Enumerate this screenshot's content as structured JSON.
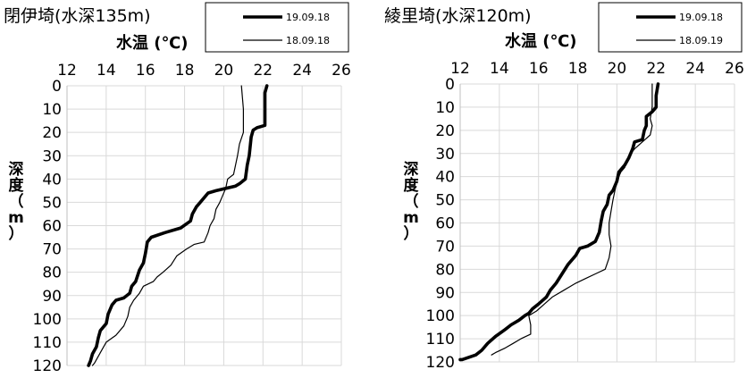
{
  "chart_data": [
    {
      "type": "line",
      "title": "閉伊埼(水深135m)",
      "xlabel": "水温 (℃)",
      "ylabel_chars": [
        "深",
        "度",
        "（",
        "m",
        "）"
      ],
      "xlim": [
        12,
        26
      ],
      "ylim": [
        0,
        120
      ],
      "y_inverted": true,
      "xticks": [
        "12",
        "14",
        "16",
        "18",
        "20",
        "22",
        "24",
        "26"
      ],
      "yticks": [
        "0",
        "10",
        "20",
        "30",
        "40",
        "50",
        "60",
        "70",
        "80",
        "90",
        "100",
        "110",
        "120"
      ],
      "grid": true,
      "legend_position": "top-right",
      "series": [
        {
          "name": "19.09.18",
          "style": "thick",
          "points": [
            [
              22.2,
              0
            ],
            [
              22.1,
              3
            ],
            [
              22.1,
              10
            ],
            [
              22.1,
              17
            ],
            [
              21.7,
              18
            ],
            [
              21.5,
              19
            ],
            [
              21.4,
              22
            ],
            [
              21.3,
              30
            ],
            [
              21.2,
              34
            ],
            [
              21.1,
              40
            ],
            [
              20.8,
              42
            ],
            [
              20.6,
              43
            ],
            [
              19.6,
              45
            ],
            [
              19.2,
              46
            ],
            [
              19.0,
              48
            ],
            [
              18.8,
              50
            ],
            [
              18.6,
              52
            ],
            [
              18.4,
              55
            ],
            [
              18.3,
              58
            ],
            [
              17.8,
              61
            ],
            [
              17.0,
              63
            ],
            [
              16.3,
              65
            ],
            [
              16.1,
              67
            ],
            [
              16.0,
              72
            ],
            [
              15.9,
              76
            ],
            [
              15.7,
              79
            ],
            [
              15.5,
              84
            ],
            [
              15.3,
              86
            ],
            [
              15.2,
              89
            ],
            [
              14.9,
              91
            ],
            [
              14.5,
              92
            ],
            [
              14.3,
              94
            ],
            [
              14.1,
              98
            ],
            [
              14.0,
              102
            ],
            [
              13.7,
              105
            ],
            [
              13.6,
              108
            ],
            [
              13.5,
              112
            ],
            [
              13.3,
              115
            ],
            [
              13.2,
              118
            ],
            [
              13.1,
              120
            ]
          ]
        },
        {
          "name": "18.09.18",
          "style": "thin",
          "points": [
            [
              20.9,
              0
            ],
            [
              21.0,
              10
            ],
            [
              21.0,
              20
            ],
            [
              20.8,
              25
            ],
            [
              20.7,
              30
            ],
            [
              20.6,
              34
            ],
            [
              20.5,
              38
            ],
            [
              20.2,
              40
            ],
            [
              20.1,
              44
            ],
            [
              19.9,
              48
            ],
            [
              19.8,
              50
            ],
            [
              19.6,
              53
            ],
            [
              19.5,
              57
            ],
            [
              19.3,
              60
            ],
            [
              19.2,
              63
            ],
            [
              19.0,
              67
            ],
            [
              18.5,
              68
            ],
            [
              18.1,
              70
            ],
            [
              17.6,
              73
            ],
            [
              17.3,
              77
            ],
            [
              16.9,
              80
            ],
            [
              16.6,
              82
            ],
            [
              16.4,
              84
            ],
            [
              15.9,
              86
            ],
            [
              15.7,
              89
            ],
            [
              15.4,
              92
            ],
            [
              15.2,
              95
            ],
            [
              15.1,
              99
            ],
            [
              14.9,
              103
            ],
            [
              14.5,
              107
            ],
            [
              14.0,
              110
            ],
            [
              13.8,
              113
            ],
            [
              13.6,
              116
            ],
            [
              13.4,
              119
            ],
            [
              13.3,
              120
            ]
          ]
        }
      ]
    },
    {
      "type": "line",
      "title": "綾里埼(水深120m)",
      "xlabel": "水温 (℃)",
      "ylabel_chars": [
        "深",
        "度",
        "（",
        "m",
        "）"
      ],
      "xlim": [
        12,
        26
      ],
      "ylim": [
        0,
        120
      ],
      "y_inverted": true,
      "xticks": [
        "12",
        "14",
        "16",
        "18",
        "20",
        "22",
        "24",
        "26"
      ],
      "yticks": [
        "0",
        "10",
        "20",
        "30",
        "40",
        "50",
        "60",
        "70",
        "80",
        "90",
        "100",
        "110",
        "120"
      ],
      "grid": true,
      "legend_position": "top-right",
      "series": [
        {
          "name": "19.09.18",
          "style": "thick",
          "points": [
            [
              22.1,
              0
            ],
            [
              22.0,
              5
            ],
            [
              22.0,
              10
            ],
            [
              21.8,
              12
            ],
            [
              21.5,
              14
            ],
            [
              21.5,
              18
            ],
            [
              21.4,
              20
            ],
            [
              21.3,
              24
            ],
            [
              20.9,
              25
            ],
            [
              20.8,
              28
            ],
            [
              20.6,
              32
            ],
            [
              20.4,
              35
            ],
            [
              20.1,
              38
            ],
            [
              20.0,
              42
            ],
            [
              19.8,
              46
            ],
            [
              19.6,
              48
            ],
            [
              19.5,
              52
            ],
            [
              19.3,
              55
            ],
            [
              19.2,
              59
            ],
            [
              19.1,
              64
            ],
            [
              18.9,
              68
            ],
            [
              18.5,
              70
            ],
            [
              18.1,
              71
            ],
            [
              17.9,
              74
            ],
            [
              17.5,
              78
            ],
            [
              17.2,
              82
            ],
            [
              16.9,
              86
            ],
            [
              16.6,
              89
            ],
            [
              16.4,
              92
            ],
            [
              16.0,
              95
            ],
            [
              15.7,
              97
            ],
            [
              15.5,
              99
            ],
            [
              15.3,
              100
            ],
            [
              15.0,
              102
            ],
            [
              14.6,
              104
            ],
            [
              14.3,
              106
            ],
            [
              13.8,
              109
            ],
            [
              13.4,
              112
            ],
            [
              13.1,
              115
            ],
            [
              12.8,
              117
            ],
            [
              12.1,
              119
            ],
            [
              12.0,
              119
            ]
          ]
        },
        {
          "name": "18.09.19",
          "style": "thin",
          "points": [
            [
              21.8,
              0
            ],
            [
              21.8,
              10
            ],
            [
              21.7,
              15
            ],
            [
              21.8,
              18
            ],
            [
              21.7,
              22
            ],
            [
              21.3,
              25
            ],
            [
              20.9,
              28
            ],
            [
              20.7,
              30
            ],
            [
              20.5,
              33
            ],
            [
              20.4,
              36
            ],
            [
              20.2,
              38
            ],
            [
              20.0,
              42
            ],
            [
              19.9,
              46
            ],
            [
              19.8,
              50
            ],
            [
              19.7,
              55
            ],
            [
              19.6,
              60
            ],
            [
              19.6,
              65
            ],
            [
              19.7,
              70
            ],
            [
              19.6,
              75
            ],
            [
              19.4,
              80
            ],
            [
              18.9,
              82
            ],
            [
              18.4,
              84
            ],
            [
              17.9,
              86
            ],
            [
              17.3,
              89
            ],
            [
              16.7,
              92
            ],
            [
              16.3,
              95
            ],
            [
              15.9,
              98
            ],
            [
              15.5,
              100
            ],
            [
              15.6,
              104
            ],
            [
              15.6,
              108
            ],
            [
              15.1,
              110
            ],
            [
              14.7,
              112
            ],
            [
              14.3,
              114
            ],
            [
              13.8,
              116
            ],
            [
              13.6,
              117
            ]
          ]
        }
      ]
    }
  ]
}
